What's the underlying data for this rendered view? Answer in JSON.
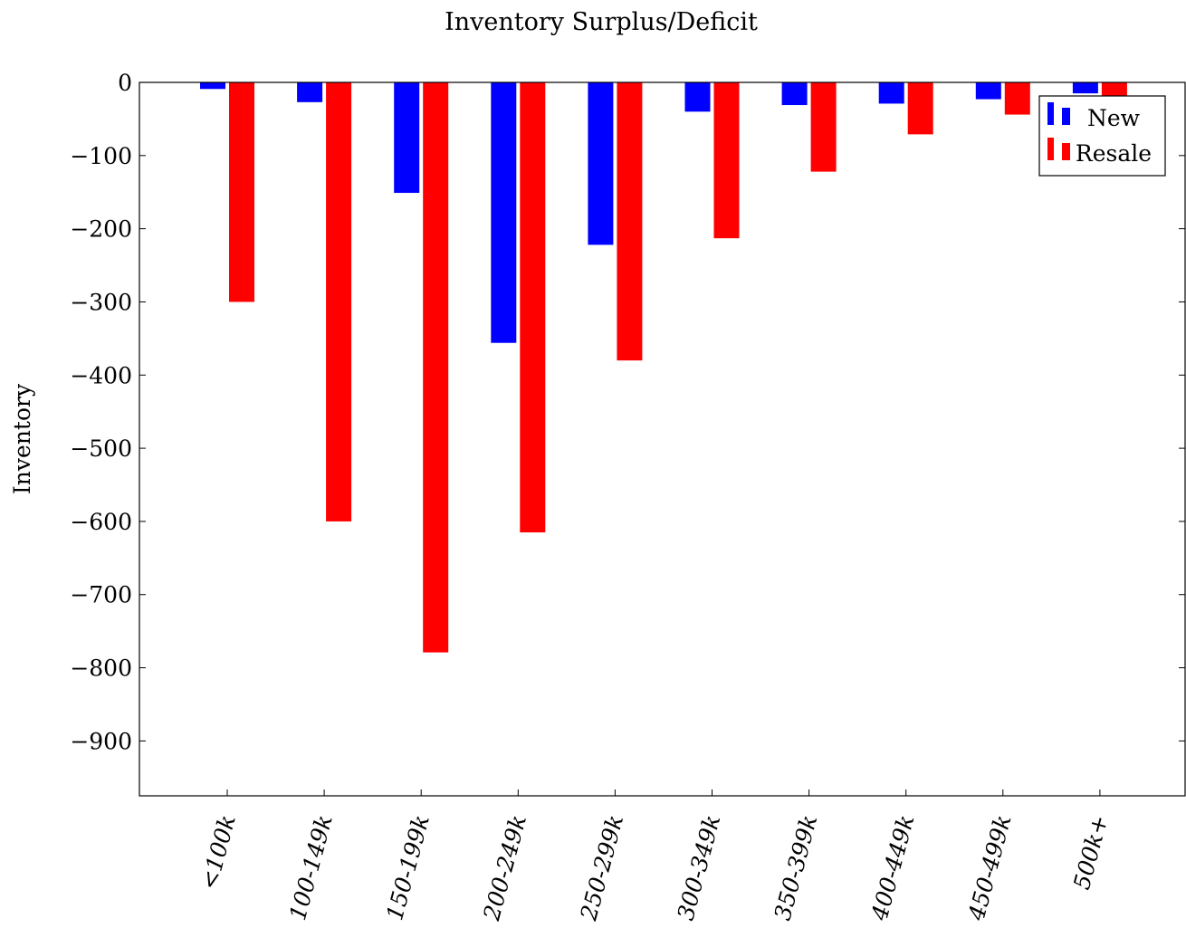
{
  "chart_data": {
    "type": "bar",
    "title": "Inventory Surplus/Deficit",
    "xlabel": "",
    "ylabel": "Inventory",
    "ylim": [
      -975,
      0
    ],
    "yticks": [
      0,
      -100,
      -200,
      -300,
      -400,
      -500,
      -600,
      -700,
      -800,
      -900
    ],
    "ytick_labels": [
      "0",
      "−100",
      "−200",
      "−300",
      "−400",
      "−500",
      "−600",
      "−700",
      "−800",
      "−900"
    ],
    "categories": [
      "<100k",
      "100-149k",
      "150-199k",
      "200-249k",
      "250-299k",
      "300-349k",
      "350-399k",
      "400-449k",
      "450-499k",
      "500k+"
    ],
    "series": [
      {
        "name": "New",
        "color": "#0000ff",
        "values": [
          -9,
          -27,
          -151,
          -356,
          -222,
          -40,
          -31,
          -29,
          -23,
          -15
        ]
      },
      {
        "name": "Resale",
        "color": "#ff0000",
        "values": [
          -300,
          -600,
          -779,
          -615,
          -380,
          -213,
          -122,
          -71,
          -44,
          -20
        ]
      }
    ],
    "legend_position": "top-right",
    "grid": false
  }
}
